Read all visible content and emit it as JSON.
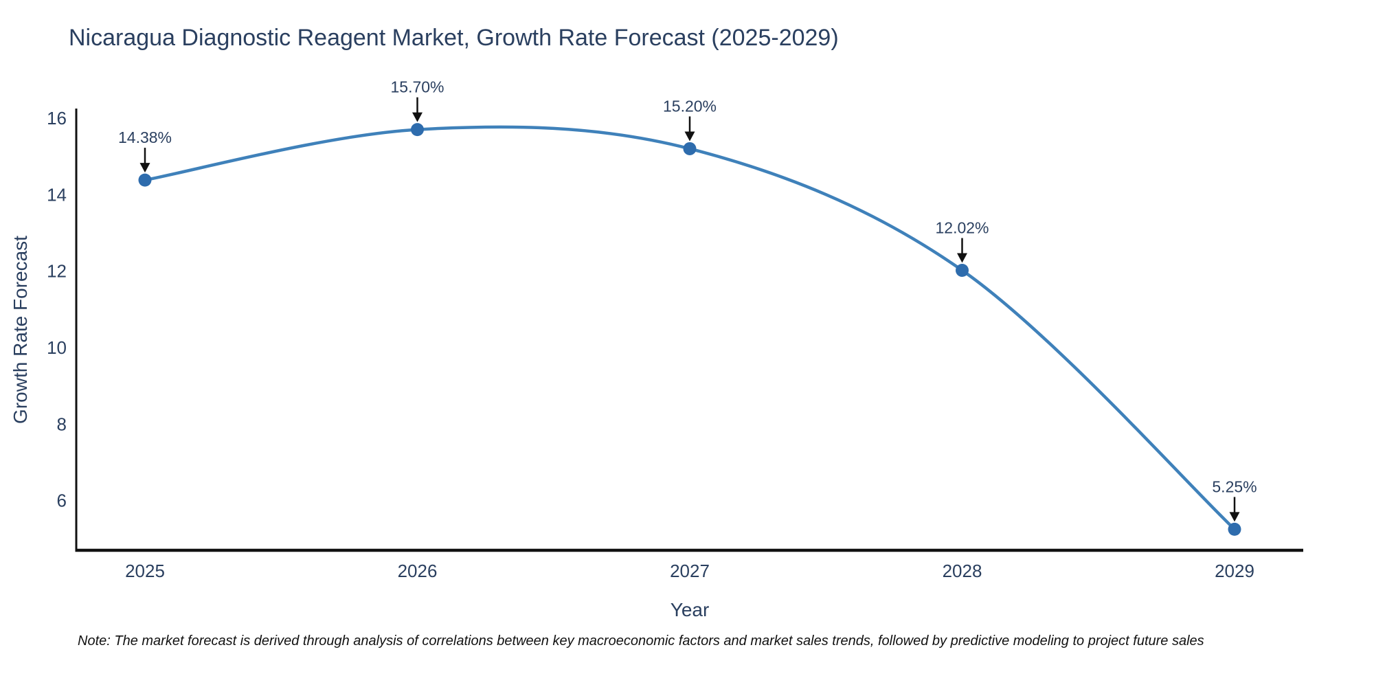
{
  "title": "Nicaragua Diagnostic Reagent Market, Growth Rate Forecast (2025-2029)",
  "note": "Note: The market forecast is derived through analysis of correlations between key macroeconomic factors and market sales trends, followed by predictive modeling to project future sales",
  "chart_data": {
    "type": "line",
    "title": "Nicaragua Diagnostic Reagent Market, Growth Rate Forecast (2025-2029)",
    "categories": [
      "2025",
      "2026",
      "2027",
      "2028",
      "2029"
    ],
    "values": [
      14.38,
      15.7,
      15.2,
      12.02,
      5.25
    ],
    "point_labels": [
      "14.38%",
      "15.70%",
      "15.20%",
      "12.02%",
      "5.25%"
    ],
    "xlabel": "Year",
    "ylabel": "Growth Rate Forecast",
    "yticks": [
      6,
      8,
      10,
      12,
      14,
      16
    ],
    "ylim": [
      4.7,
      16.25
    ],
    "line_shape": "spline",
    "grid": false,
    "legend_position": "none",
    "colors": {
      "line": "#3f81ba",
      "marker": "#2e6cad",
      "text": "#2a3f5f",
      "axis": "#111111",
      "annotation": "#111111",
      "background": "#ffffff"
    }
  }
}
